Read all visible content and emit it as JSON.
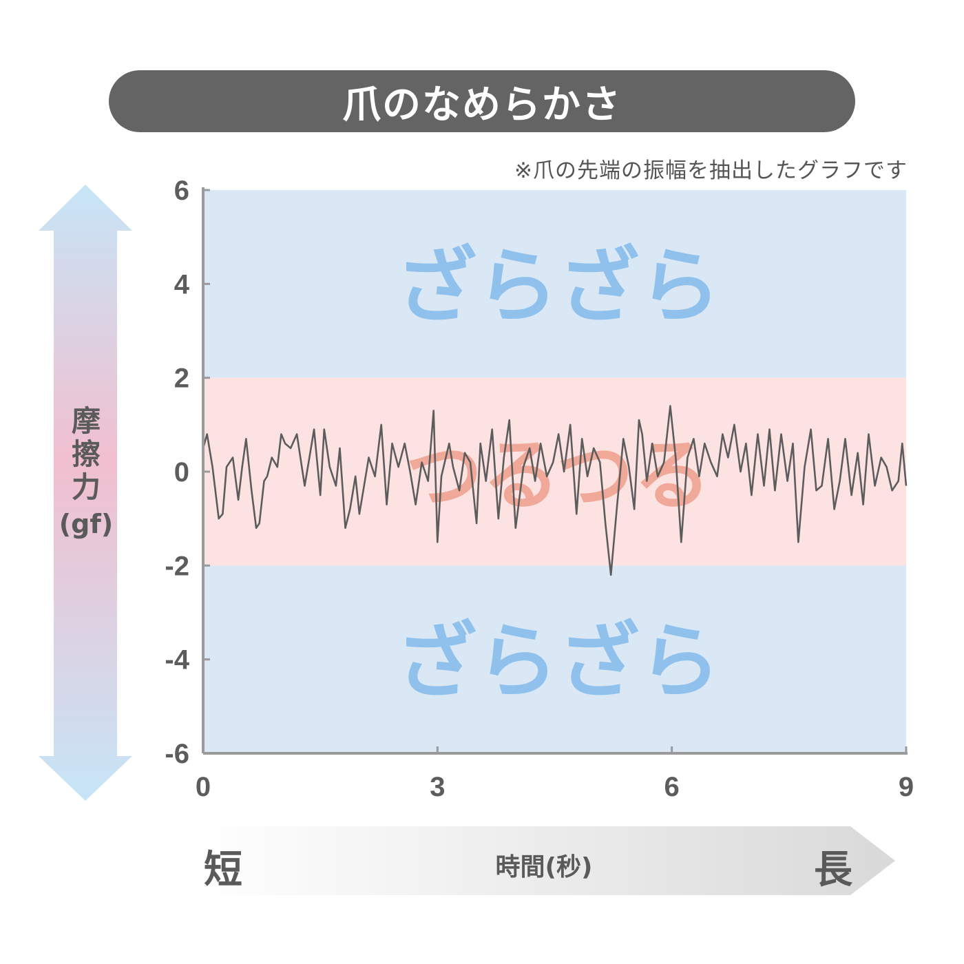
{
  "title": "爪のなめらかさ",
  "note": "※爪の先端の振幅を抽出したグラフです",
  "colors": {
    "rough_band": "#dae8f6",
    "smooth_band": "#fde2e2",
    "rough_text": "#8fc1ec",
    "smooth_text": "#f0a898",
    "line": "#5c5c5c",
    "axis": "#9a9a9a",
    "title_bg": "#646464"
  },
  "regions": {
    "rough_label": "ざらざら",
    "smooth_label": "つるつる"
  },
  "y_axis": {
    "title_chars": [
      "摩",
      "擦",
      "力"
    ],
    "unit": "(gf)"
  },
  "x_axis": {
    "title": "時間(秒)",
    "short_label": "短",
    "long_label": "長"
  },
  "chart_data": {
    "type": "line",
    "xlabel": "時間(秒)",
    "ylabel": "摩擦力(gf)",
    "xlim": [
      0,
      9
    ],
    "ylim": [
      -6,
      6
    ],
    "xticks": [
      0,
      3,
      6,
      9
    ],
    "yticks": [
      6,
      4,
      2,
      0,
      -2,
      -4,
      -6
    ],
    "grid": false,
    "bands": [
      {
        "label": "ざらざら",
        "from": 2,
        "to": 6
      },
      {
        "label": "つるつる",
        "from": -2,
        "to": 2
      },
      {
        "label": "ざらざら",
        "from": -6,
        "to": -2
      }
    ],
    "series": [
      {
        "x": [
          0,
          0.05,
          0.12,
          0.2,
          0.25,
          0.3,
          0.38,
          0.45,
          0.5,
          0.55,
          0.62,
          0.68,
          0.72,
          0.78,
          0.82,
          0.88,
          0.95,
          1.0,
          1.05,
          1.12,
          1.2,
          1.3,
          1.35,
          1.42,
          1.5,
          1.55,
          1.62,
          1.7,
          1.75,
          1.82,
          1.88,
          1.95,
          2.0,
          2.05,
          2.12,
          2.2,
          2.28,
          2.35,
          2.42,
          2.5,
          2.58,
          2.65,
          2.72,
          2.8,
          2.88,
          2.95,
          3.0,
          3.05,
          3.15,
          3.2,
          3.28,
          3.35,
          3.42,
          3.5,
          3.55,
          3.62,
          3.7,
          3.78,
          3.85,
          3.92,
          4.0,
          4.1,
          4.18,
          4.25,
          4.32,
          4.4,
          4.48,
          4.55,
          4.62,
          4.7,
          4.78,
          4.85,
          4.92,
          5.0,
          5.08,
          5.15,
          5.22,
          5.3,
          5.38,
          5.45,
          5.52,
          5.58,
          5.62,
          5.68,
          5.75,
          5.82,
          5.9,
          5.98,
          6.05,
          6.12,
          6.2,
          6.28,
          6.35,
          6.42,
          6.5,
          6.58,
          6.65,
          6.72,
          6.8,
          6.88,
          6.95,
          7.02,
          7.1,
          7.18,
          7.25,
          7.32,
          7.4,
          7.48,
          7.55,
          7.62,
          7.7,
          7.78,
          7.85,
          7.92,
          8.0,
          8.08,
          8.15,
          8.22,
          8.3,
          8.38,
          8.45,
          8.52,
          8.6,
          8.68,
          8.75,
          8.82,
          8.9,
          8.95,
          9.0
        ],
        "values": [
          0.5,
          0.8,
          0.1,
          -1.0,
          -0.9,
          0.1,
          0.3,
          -0.6,
          0.1,
          0.7,
          -0.4,
          -1.2,
          -1.1,
          -0.2,
          -0.1,
          0.3,
          0.1,
          0.8,
          0.6,
          0.5,
          0.8,
          -0.3,
          0.2,
          0.9,
          -0.5,
          0.9,
          0.1,
          -0.3,
          0.5,
          -1.2,
          -0.8,
          -0.1,
          -0.9,
          -0.4,
          0.3,
          -0.1,
          1.0,
          -0.7,
          0.6,
          0.1,
          0.6,
          0.0,
          -0.7,
          0.2,
          -0.2,
          1.3,
          -1.5,
          -0.1,
          0.6,
          0.1,
          -0.4,
          0.4,
          0.2,
          -1.1,
          0.6,
          -0.2,
          0.9,
          -1.0,
          0.3,
          1.1,
          -1.2,
          0.1,
          0.5,
          -0.2,
          0.6,
          -0.1,
          0.2,
          0.8,
          0.0,
          1.0,
          -0.9,
          0.7,
          -0.1,
          0.5,
          0.2,
          -1.1,
          -2.2,
          -0.7,
          0.7,
          0.1,
          -0.8,
          1.1,
          0.8,
          -0.2,
          0.6,
          -0.1,
          0.2,
          1.4,
          0.3,
          -1.5,
          0.3,
          0.7,
          -0.1,
          0.6,
          0.2,
          -0.1,
          0.8,
          0.3,
          1.0,
          0.0,
          0.6,
          -0.5,
          0.8,
          -0.3,
          0.9,
          -0.4,
          0.8,
          -0.2,
          0.6,
          -1.5,
          0.1,
          0.9,
          -0.4,
          -0.3,
          0.7,
          -0.8,
          -0.2,
          0.7,
          -0.5,
          0.4,
          -0.7,
          0.8,
          -0.3,
          0.3,
          0.1,
          -0.4,
          -0.2,
          0.6,
          -0.3
        ]
      }
    ]
  }
}
